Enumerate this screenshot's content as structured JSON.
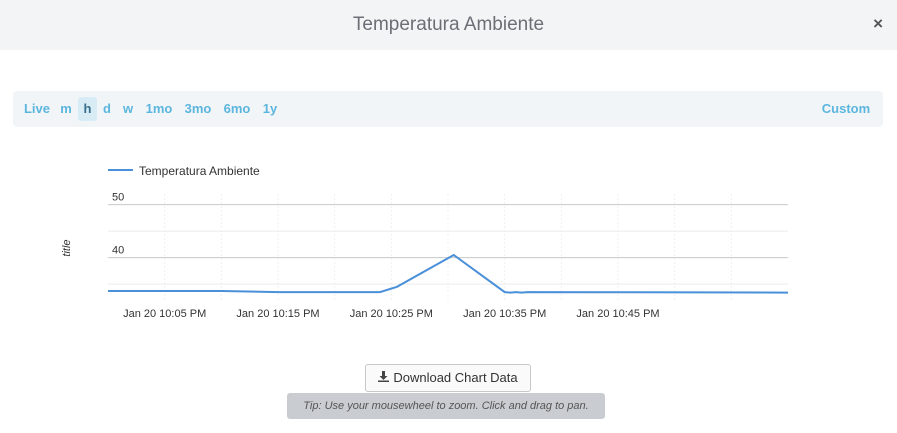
{
  "modal": {
    "title": "Temperatura Ambiente",
    "close_icon": "×"
  },
  "range_selector": {
    "buttons": [
      "Live",
      "m",
      "h",
      "d",
      "w",
      "1mo",
      "3mo",
      "6mo",
      "1y"
    ],
    "active": "h",
    "custom_label": "Custom"
  },
  "chart_data": {
    "type": "line",
    "ylabel": "title",
    "xlabel": "",
    "legend": {
      "entries": [
        "Temperatura Ambiente"
      ],
      "placement": "top-left"
    },
    "series_color": "#4a90d9",
    "grid": true,
    "x_ticks": [
      "Jan 20 10:05 PM",
      "Jan 20 10:15 PM",
      "Jan 20 10:25 PM",
      "Jan 20 10:35 PM",
      "Jan 20 10:45 PM"
    ],
    "y_ticks": [
      40,
      50
    ],
    "ylim": [
      32,
      52
    ],
    "xlim_minutes_after_2200": [
      0,
      60
    ],
    "series": [
      {
        "name": "Temperatura Ambiente",
        "x": [
          0,
          10,
          15,
          24,
          25.5,
          30.5,
          35,
          35.5,
          36,
          36.5,
          37,
          60
        ],
        "y": [
          33.7,
          33.7,
          33.5,
          33.5,
          34.5,
          40.5,
          33.5,
          33.4,
          33.5,
          33.4,
          33.5,
          33.4
        ]
      }
    ]
  },
  "download": {
    "label": "Download Chart Data",
    "icon": "download-icon"
  },
  "tip": {
    "text": "Tip: Use your mousewheel to zoom. Click and drag to pan."
  }
}
